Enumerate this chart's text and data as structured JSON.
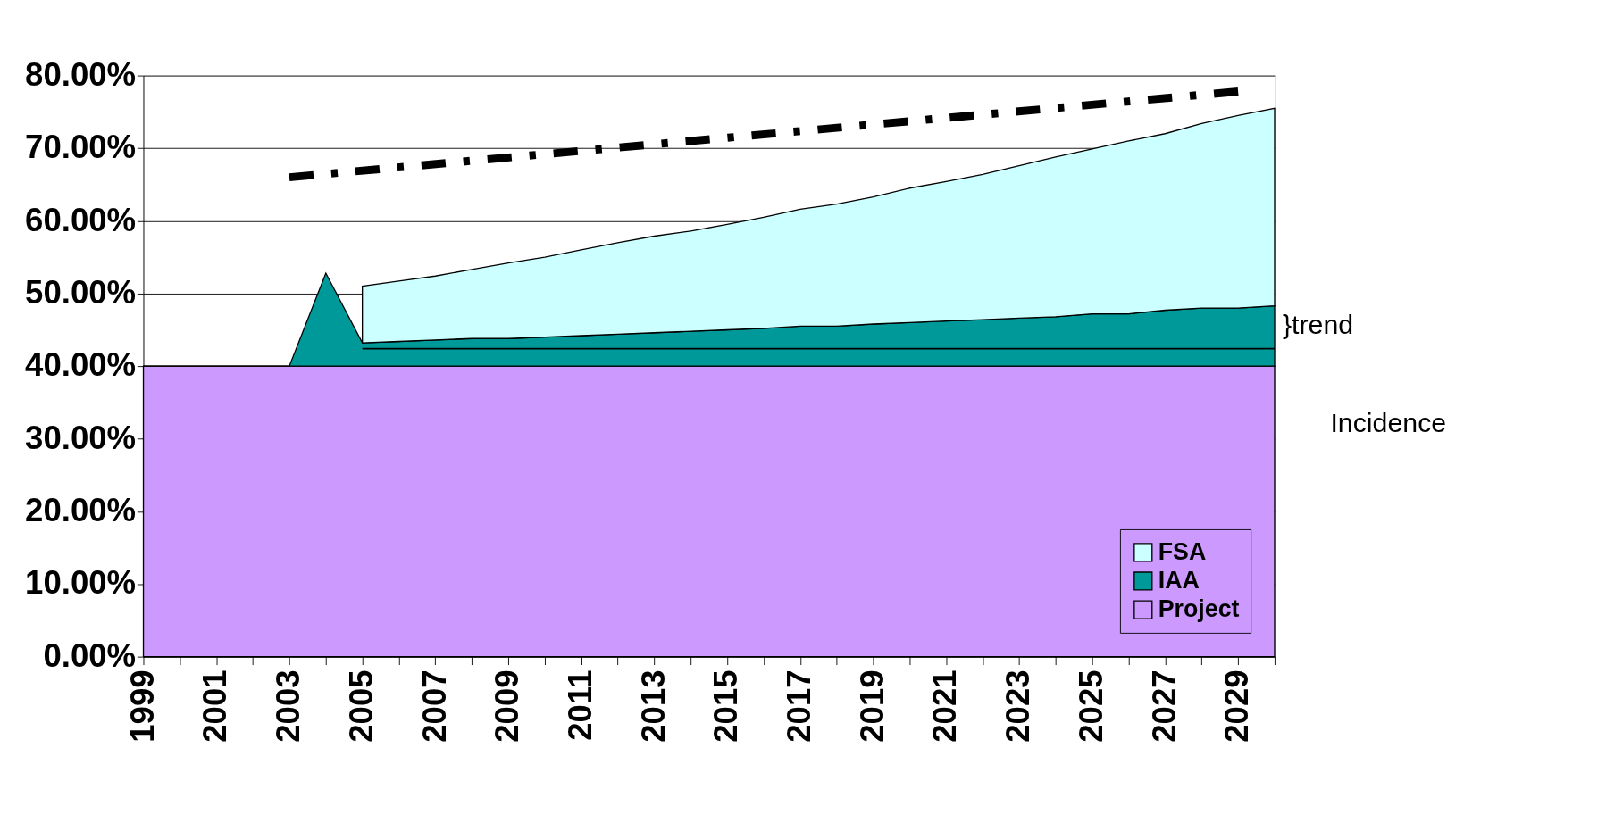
{
  "chart_data": {
    "type": "area",
    "stacked": true,
    "x": [
      1999,
      2000,
      2001,
      2002,
      2003,
      2004,
      2005,
      2006,
      2007,
      2008,
      2009,
      2010,
      2011,
      2012,
      2013,
      2014,
      2015,
      2016,
      2017,
      2018,
      2019,
      2020,
      2021,
      2022,
      2023,
      2024,
      2025,
      2026,
      2027,
      2028,
      2029,
      2030
    ],
    "series": [
      {
        "name": "Project",
        "color": "#cc99ff",
        "values": [
          40,
          40,
          40,
          40,
          40,
          40,
          40,
          40,
          40,
          40,
          40,
          40,
          40,
          40,
          40,
          40,
          40,
          40,
          40,
          40,
          40,
          40,
          40,
          40,
          40,
          40,
          40,
          40,
          40,
          40,
          40,
          40
        ]
      },
      {
        "name": "IAA",
        "color": "#009999",
        "values": [
          0,
          0,
          0,
          0,
          0,
          12.8,
          3.2,
          3.4,
          3.6,
          3.8,
          3.8,
          4.0,
          4.2,
          4.4,
          4.6,
          4.8,
          5.0,
          5.2,
          5.5,
          5.5,
          5.8,
          6.0,
          6.2,
          6.4,
          6.6,
          6.8,
          7.2,
          7.2,
          7.7,
          8.0,
          8.0,
          8.3
        ]
      },
      {
        "name": "FSA",
        "color": "#ccffff",
        "values": [
          null,
          null,
          null,
          null,
          null,
          null,
          7.8,
          8.3,
          8.8,
          9.5,
          10.4,
          11.0,
          11.8,
          12.6,
          13.3,
          13.8,
          14.5,
          15.3,
          16.1,
          16.8,
          17.5,
          18.5,
          19.2,
          20.0,
          21.0,
          22.0,
          22.7,
          23.8,
          24.3,
          25.4,
          26.5,
          27.2
        ]
      },
      {
        "type": "line",
        "color": "#000000",
        "line_style": "dashed",
        "x": [
          2003,
          2029
        ],
        "values": [
          66.0,
          77.8
        ]
      },
      {
        "type": "line",
        "color": "#000000",
        "line_style": "solid",
        "x": [
          2005,
          2030
        ],
        "values": [
          42.4,
          42.4
        ]
      }
    ],
    "xlim": [
      1999,
      2030
    ],
    "xticks": [
      1999,
      {
        "value": 2000,
        "label": null
      },
      2001,
      {
        "value": 2002,
        "label": null
      },
      2003,
      {
        "value": 2004,
        "label": null
      },
      2005,
      {
        "value": 2006,
        "label": null
      },
      2007,
      {
        "value": 2008,
        "label": null
      },
      2009,
      {
        "value": 2010,
        "label": null
      },
      2011,
      {
        "value": 2012,
        "label": null
      },
      2013,
      {
        "value": 2014,
        "label": null
      },
      2015,
      {
        "value": 2016,
        "label": null
      },
      2017,
      {
        "value": 2018,
        "label": null
      },
      2019,
      {
        "value": 2020,
        "label": null
      },
      2021,
      {
        "value": 2022,
        "label": null
      },
      2023,
      {
        "value": 2024,
        "label": null
      },
      2025,
      {
        "value": 2026,
        "label": null
      },
      2027,
      {
        "value": 2028,
        "label": null
      },
      2029,
      {
        "value": 2030,
        "label": null
      }
    ],
    "ylim": [
      0,
      80
    ],
    "yticks": [
      {
        "value": 0,
        "label": "0.00%"
      },
      {
        "value": 10,
        "label": "10.00%"
      },
      {
        "value": 20,
        "label": "20.00%"
      },
      {
        "value": 30,
        "label": "30.00%"
      },
      {
        "value": 40,
        "label": "40.00%"
      },
      {
        "value": 50,
        "label": "50.00%"
      },
      {
        "value": 60,
        "label": "60.00%"
      },
      {
        "value": 70,
        "label": "70.00%"
      },
      {
        "value": 80,
        "label": "80.00%"
      }
    ],
    "grid": "y",
    "legend": "bottom right",
    "annotations": [
      {
        "text": "}trend",
        "x": 2030,
        "y": 45.5
      },
      {
        "text": "Incidence",
        "x": 2030,
        "y": 32
      }
    ]
  }
}
